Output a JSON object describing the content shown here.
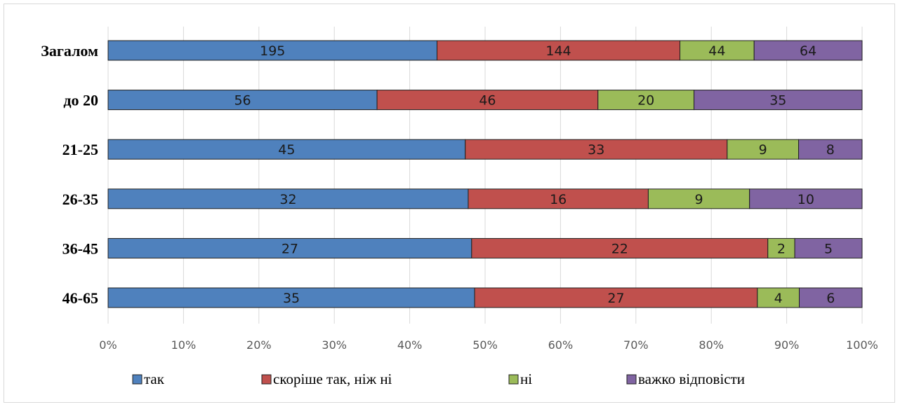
{
  "chart_data": {
    "type": "bar",
    "orientation": "horizontal",
    "stacked": "percent",
    "title": "",
    "xlabel": "",
    "ylabel": "",
    "xlim": [
      0,
      100
    ],
    "grid": true,
    "legend_position": "bottom",
    "categories": [
      "Загалом",
      "до 20",
      "21-25",
      "26-35",
      "36-45",
      "46-65"
    ],
    "x_ticks": [
      "0%",
      "10%",
      "20%",
      "30%",
      "40%",
      "50%",
      "60%",
      "70%",
      "80%",
      "90%",
      "100%"
    ],
    "series": [
      {
        "name": "так",
        "color": "#4f81bd",
        "values": [
          195,
          56,
          45,
          32,
          27,
          35
        ]
      },
      {
        "name": "скоріше так, ніж ні",
        "color": "#c0504d",
        "values": [
          144,
          46,
          33,
          16,
          22,
          27
        ]
      },
      {
        "name": "ні",
        "color": "#9bbb59",
        "values": [
          44,
          20,
          9,
          9,
          2,
          4
        ]
      },
      {
        "name": "важко відповісти",
        "color": "#8064a2",
        "values": [
          64,
          35,
          8,
          10,
          5,
          6
        ]
      }
    ]
  }
}
